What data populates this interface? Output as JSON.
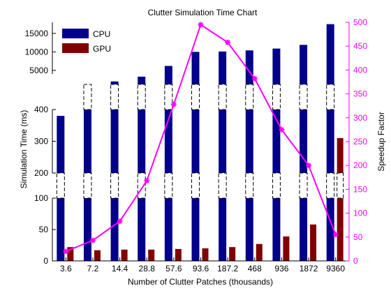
{
  "chart_data": {
    "type": "bar",
    "title": "Clutter Simulation Time Chart",
    "xlabel": "Number of Clutter Patches (thousands)",
    "ylabel": "Simulation Time (ms)",
    "y2label": "Speedup Factor",
    "categories": [
      "3.6",
      "7.2",
      "14.4",
      "28.8",
      "57.6",
      "93.6",
      "187.2",
      "468",
      "936",
      "1872",
      "9360"
    ],
    "axis_break": true,
    "y_segments": [
      {
        "range": [
          0,
          100
        ],
        "ticks": [
          0,
          50,
          100
        ]
      },
      {
        "range": [
          200,
          400
        ],
        "ticks": [
          200,
          300,
          400
        ]
      },
      {
        "range": [
          0,
          18000
        ],
        "ticks": [
          5000,
          10000,
          15000
        ]
      }
    ],
    "series": [
      {
        "name": "CPU",
        "color": "#00008b",
        "values": [
          380,
          1200,
          2000,
          3300,
          6200,
          10000,
          10100,
          10400,
          10900,
          11900,
          17500
        ]
      },
      {
        "name": "GPU",
        "color": "#800000",
        "values": [
          22,
          17,
          18,
          18,
          19,
          20,
          22,
          27,
          39,
          58,
          310
        ]
      }
    ],
    "speedup": {
      "name": "Speedup Factor",
      "color": "#ff00ff",
      "axis": "right",
      "ylim": [
        0,
        500
      ],
      "ticks": [
        0,
        50,
        100,
        150,
        200,
        250,
        300,
        350,
        400,
        450,
        500
      ],
      "values": [
        20,
        43,
        83,
        168,
        328,
        495,
        458,
        382,
        275,
        200,
        55
      ]
    },
    "legend": {
      "position": "top-left"
    },
    "grid": false
  }
}
